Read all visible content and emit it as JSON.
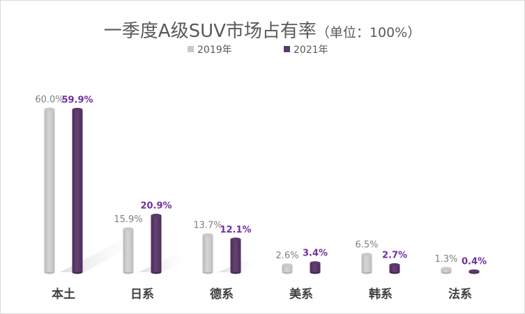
{
  "colors": {
    "series_2019": "#c9c9c9",
    "series_2019_dark": "#b3b3b3",
    "series_2021": "#5b3a6a",
    "series_2021_dark": "#46294f",
    "label_2021": "#7030a0",
    "label_2019": "#7f7f7f"
  },
  "chart_data": {
    "type": "bar",
    "title": "一季度A级SUV市场占有率",
    "subtitle": "（单位：100%）",
    "legend_position": "top-center",
    "grid": false,
    "categories": [
      "本土",
      "日系",
      "德系",
      "美系",
      "韩系",
      "法系"
    ],
    "ylim": [
      0,
      60
    ],
    "series": [
      {
        "name": "2019年",
        "values": [
          60.0,
          15.9,
          13.7,
          2.6,
          6.5,
          1.3
        ],
        "labels": [
          "60.0%",
          "15.9%",
          "13.7%",
          "2.6%",
          "6.5%",
          "1.3%"
        ]
      },
      {
        "name": "2021年",
        "values": [
          59.9,
          20.9,
          12.1,
          3.4,
          2.7,
          0.4
        ],
        "labels": [
          "59.9%",
          "20.9%",
          "12.1%",
          "3.4%",
          "2.7%",
          "0.4%"
        ]
      }
    ]
  }
}
